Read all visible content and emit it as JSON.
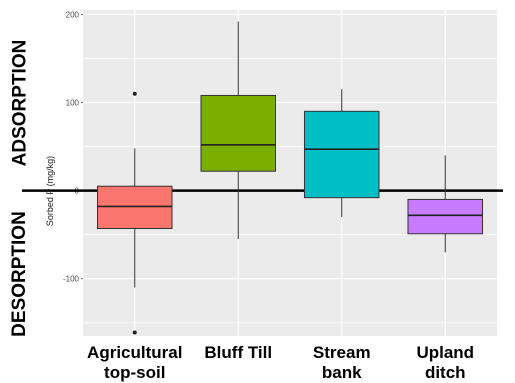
{
  "chart_data": {
    "type": "boxplot",
    "ylabel": "Sorbed P (mg/kg)",
    "ylim": [
      -165,
      205
    ],
    "yticks": [
      -100,
      0,
      100,
      200
    ],
    "grid": true,
    "reference_line": 0,
    "side_labels": {
      "upper": "ADSORPTION",
      "lower": "DESORPTION"
    },
    "categories": [
      {
        "label_lines": [
          "Agricultural",
          "top-soil"
        ],
        "color": "#F8766D",
        "whisker_low": -110,
        "q1": -43,
        "median": -18,
        "q3": 5,
        "whisker_high": 48,
        "outliers": [
          110,
          -161
        ]
      },
      {
        "label_lines": [
          "Bluff Till"
        ],
        "color": "#7CAE00",
        "whisker_low": -55,
        "q1": 22,
        "median": 52,
        "q3": 108,
        "whisker_high": 192,
        "outliers": []
      },
      {
        "label_lines": [
          "Stream",
          "bank"
        ],
        "color": "#00BFC4",
        "whisker_low": -30,
        "q1": -8,
        "median": 47,
        "q3": 90,
        "whisker_high": 115,
        "outliers": []
      },
      {
        "label_lines": [
          "Upland",
          "ditch"
        ],
        "color": "#C77CFF",
        "whisker_low": -70,
        "q1": -49,
        "median": -28,
        "q3": -10,
        "whisker_high": 40,
        "outliers": []
      }
    ]
  }
}
